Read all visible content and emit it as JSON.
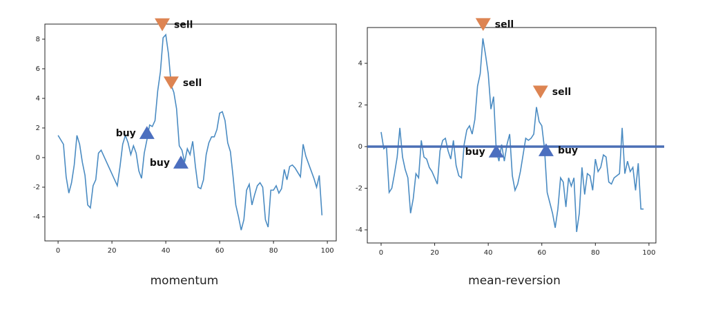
{
  "chart_data": [
    {
      "type": "line",
      "title": "momentum",
      "x": [
        0,
        1,
        2,
        3,
        4,
        5,
        6,
        7,
        8,
        9,
        10,
        11,
        12,
        13,
        14,
        15,
        16,
        17,
        18,
        19,
        20,
        21,
        22,
        23,
        24,
        25,
        26,
        27,
        28,
        29,
        30,
        31,
        32,
        33,
        34,
        35,
        36,
        37,
        38,
        39,
        40,
        41,
        42,
        43,
        44,
        45,
        46,
        47,
        48,
        49,
        50,
        51,
        52,
        53,
        54,
        55,
        56,
        57,
        58,
        59,
        60,
        61,
        62,
        63,
        64,
        65,
        66,
        67,
        68,
        69,
        70,
        71,
        72,
        73,
        74,
        75,
        76,
        77,
        78,
        79,
        80,
        81,
        82,
        83,
        84,
        85,
        86,
        87,
        88,
        89,
        90,
        91,
        92,
        93,
        94,
        95,
        96,
        97,
        98
      ],
      "series": [
        {
          "color": "#4a8bc2",
          "values": [
            1.5,
            1.2,
            0.9,
            -1.3,
            -2.4,
            -1.7,
            -0.5,
            1.5,
            0.9,
            -0.3,
            -1.2,
            -3.2,
            -3.4,
            -1.9,
            -1.5,
            0.3,
            0.5,
            0.1,
            -0.3,
            -0.7,
            -1.1,
            -1.5,
            -1.9,
            -0.6,
            0.9,
            1.5,
            1.0,
            0.2,
            0.8,
            0.3,
            -0.9,
            -1.4,
            0.3,
            1.2,
            2.2,
            2.1,
            2.5,
            4.5,
            5.8,
            8.1,
            8.3,
            7.0,
            4.9,
            4.4,
            3.3,
            0.8,
            0.5,
            -0.3,
            0.6,
            0.2,
            1.1,
            -0.6,
            -2.0,
            -2.1,
            -1.5,
            0.2,
            1.0,
            1.4,
            1.4,
            1.9,
            3.0,
            3.1,
            2.5,
            1.0,
            0.4,
            -1.3,
            -3.2,
            -4.0,
            -4.9,
            -4.2,
            -2.2,
            -1.8,
            -3.2,
            -2.5,
            -1.9,
            -1.7,
            -2.0,
            -4.2,
            -4.7,
            -2.2,
            -2.2,
            -1.9,
            -2.4,
            -2.1,
            -0.8,
            -1.5,
            -0.6,
            -0.5,
            -0.7,
            -1.0,
            -1.3,
            0.9,
            0.1,
            -0.4,
            -0.9,
            -1.4,
            -2.0,
            -1.2,
            -3.9
          ]
        }
      ],
      "markers": [
        {
          "label": "sell",
          "x": 38.7,
          "y": 9.0,
          "marker": "v",
          "color": "#dd8452"
        },
        {
          "label": "sell",
          "x": 42,
          "y": 5.07,
          "marker": "v",
          "color": "#dd8452"
        },
        {
          "label": "buy",
          "x": 33,
          "y": 1.67,
          "marker": "^",
          "color": "#4c6fbf"
        },
        {
          "label": "buy",
          "x": 45.6,
          "y": -0.33,
          "marker": "^",
          "color": "#4c6fbf"
        }
      ],
      "xlim": [
        -4.9,
        103.3
      ],
      "ylim": [
        -5.63,
        9.02
      ],
      "xticks": [
        0,
        20,
        40,
        60,
        80,
        100
      ],
      "yticks": [
        -4,
        -2,
        0,
        2,
        4,
        6,
        8
      ]
    },
    {
      "type": "line",
      "title": "mean-reversion",
      "x": [
        0,
        1,
        2,
        3,
        4,
        5,
        6,
        7,
        8,
        9,
        10,
        11,
        12,
        13,
        14,
        15,
        16,
        17,
        18,
        19,
        20,
        21,
        22,
        23,
        24,
        25,
        26,
        27,
        28,
        29,
        30,
        31,
        32,
        33,
        34,
        35,
        36,
        37,
        38,
        39,
        40,
        41,
        42,
        43,
        44,
        45,
        46,
        47,
        48,
        49,
        50,
        51,
        52,
        53,
        54,
        55,
        56,
        57,
        58,
        59,
        60,
        61,
        62,
        63,
        64,
        65,
        66,
        67,
        68,
        69,
        70,
        71,
        72,
        73,
        74,
        75,
        76,
        77,
        78,
        79,
        80,
        81,
        82,
        83,
        84,
        85,
        86,
        87,
        88,
        89,
        90,
        91,
        92,
        93,
        94,
        95,
        96,
        97,
        98
      ],
      "series": [
        {
          "color": "#4a8bc2",
          "values": [
            0.7,
            -0.1,
            0.0,
            -2.2,
            -2.0,
            -1.3,
            -0.5,
            0.9,
            -0.5,
            -1.1,
            -1.5,
            -3.2,
            -2.5,
            -1.3,
            -1.5,
            0.3,
            -0.5,
            -0.6,
            -1.0,
            -1.2,
            -1.5,
            -1.8,
            -0.2,
            0.3,
            0.4,
            -0.2,
            -0.6,
            0.3,
            -0.9,
            -1.4,
            -1.5,
            0.1,
            0.8,
            1.0,
            0.6,
            1.3,
            2.9,
            3.5,
            5.2,
            4.4,
            3.5,
            1.8,
            2.4,
            -0.2,
            -0.7,
            0.1,
            -0.7,
            0.1,
            0.6,
            -1.4,
            -2.1,
            -1.8,
            -1.2,
            -0.4,
            0.4,
            0.3,
            0.4,
            0.6,
            1.9,
            1.2,
            1.0,
            -0.1,
            -2.2,
            -2.7,
            -3.2,
            -3.9,
            -3.0,
            -1.5,
            -1.7,
            -2.9,
            -1.5,
            -1.9,
            -1.5,
            -4.1,
            -3.2,
            -1.0,
            -2.3,
            -1.3,
            -1.4,
            -2.1,
            -0.6,
            -1.2,
            -1.0,
            -0.4,
            -0.5,
            -1.7,
            -1.8,
            -1.5,
            -1.4,
            -1.3,
            0.9,
            -1.3,
            -0.7,
            -1.2,
            -1.0,
            -2.1,
            -0.8,
            -3.0,
            -3.0
          ]
        }
      ],
      "hline": 0,
      "hline_color": "#4a6fb5",
      "markers": [
        {
          "label": "sell",
          "x": 38.1,
          "y": 5.88,
          "marker": "v",
          "color": "#dd8452"
        },
        {
          "label": "sell",
          "x": 59.5,
          "y": 2.64,
          "marker": "v",
          "color": "#dd8452"
        },
        {
          "label": "buy",
          "x": 43,
          "y": -0.23,
          "marker": "^",
          "color": "#4c6fbf"
        },
        {
          "label": "buy",
          "x": 61.6,
          "y": -0.17,
          "marker": "^",
          "color": "#4c6fbf"
        }
      ],
      "xlim": [
        -5.15,
        102.6
      ],
      "ylim": [
        -4.63,
        5.72
      ],
      "xticks": [
        0,
        20,
        40,
        60,
        80,
        100
      ],
      "yticks": [
        -4,
        -2,
        0,
        2,
        4
      ]
    }
  ]
}
